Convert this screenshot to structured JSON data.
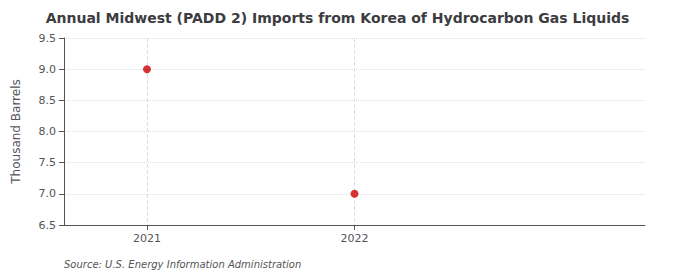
{
  "chart_data": {
    "type": "scatter",
    "title": "Annual Midwest (PADD 2) Imports from Korea of Hydrocarbon Gas Liquids",
    "ylabel": "Thousand Barrels",
    "annotation": "Source: U.S. Energy Information Administration",
    "x": [
      2021,
      2022
    ],
    "values": [
      9.0,
      7.0
    ],
    "color": "#cc0000",
    "xlim": [
      2020.6,
      2023.4
    ],
    "xticks": [
      2021,
      2022
    ],
    "ylim": [
      6.5,
      9.5
    ],
    "yticks": [
      6.5,
      {
        "value": 7.0,
        "label": "7.0"
      },
      7.5,
      {
        "value": 8.0,
        "label": "8.0"
      },
      8.5,
      {
        "value": 9.0,
        "label": "9.0"
      },
      9.5
    ],
    "grid": true
  }
}
